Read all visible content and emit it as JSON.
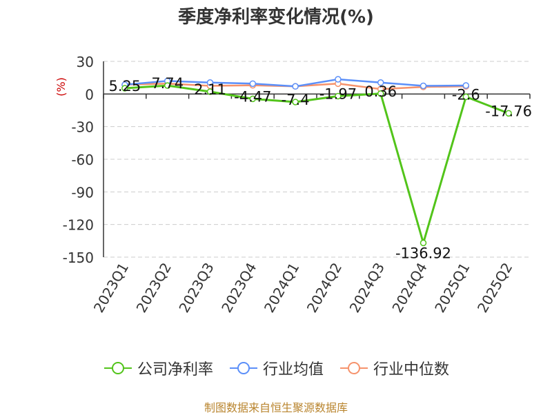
{
  "title": "季度净利率变化情况(%)",
  "footer": "制图数据来自恒生聚源数据库",
  "chart_data": {
    "type": "line",
    "ylabel": "(%)",
    "ylim": [
      -150,
      30
    ],
    "yticks": [
      30,
      0,
      -30,
      -60,
      -90,
      -120,
      -150
    ],
    "grid": true,
    "legend_position": "bottom",
    "categories": [
      "2023Q1",
      "2023Q2",
      "2023Q3",
      "2023Q4",
      "2024Q1",
      "2024Q2",
      "2024Q3",
      "2024Q4",
      "2025Q1",
      "2025Q2"
    ],
    "series": [
      {
        "name": "公司净利率",
        "color": "#52c41a",
        "values": [
          5.25,
          7.74,
          2.11,
          -4.47,
          -7.4,
          -1.97,
          0.36,
          -136.92,
          -2.6,
          -17.76
        ],
        "labels": [
          "5.25",
          "7.74",
          "2.11",
          "-4.47",
          "-7.4",
          "-1.97",
          "0.36",
          "-136.92",
          "-2.6",
          "-17.76"
        ]
      },
      {
        "name": "行业均值",
        "color": "#5b8ff9",
        "values": [
          8.5,
          12.0,
          10.5,
          9.5,
          7.0,
          13.5,
          10.5,
          7.5,
          7.8,
          null
        ]
      },
      {
        "name": "行业中位数",
        "color": "#f6926b",
        "values": [
          8.5,
          9.5,
          7.5,
          8.0,
          7.0,
          9.5,
          4.5,
          6.5,
          7.0,
          null
        ]
      }
    ]
  }
}
